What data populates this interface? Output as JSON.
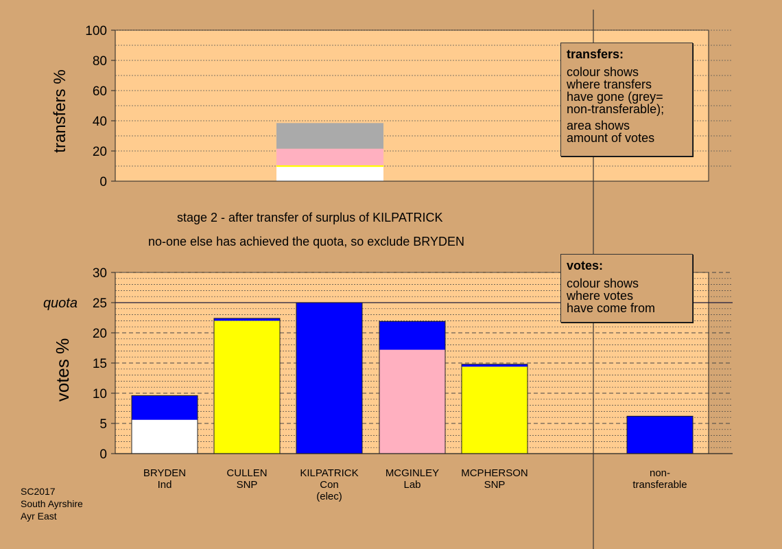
{
  "captions": {
    "line1": "stage 2 - after transfer of surplus of KILPATRICK",
    "line2": "no-one else has achieved the quota, so exclude BRYDEN"
  },
  "footer": {
    "lines": [
      "SC2017",
      "South Ayrshire",
      "Ayr East"
    ]
  },
  "legend_transfers": {
    "title": "transfers:",
    "lines_a": [
      "colour shows",
      "where transfers",
      "have gone (grey=",
      "non-transferable);"
    ],
    "lines_b": [
      "area shows",
      "amount of votes"
    ]
  },
  "legend_votes": {
    "title": "votes:",
    "lines": [
      "colour shows",
      "where votes",
      "have come from"
    ]
  },
  "colors": {
    "background": "#d4a674",
    "plot_bg": "#ffcc8f",
    "Ind": "#ffffff",
    "SNP": "#ffff00",
    "Con": "#0000ff",
    "Lab": "#ffb0c0",
    "non_transferable": "#aaaaaa"
  },
  "chart_data": [
    {
      "type": "bar",
      "name": "transfers",
      "ylabel": "transfers %",
      "ylim": [
        0,
        100
      ],
      "yticks": [
        0,
        20,
        40,
        60,
        80,
        100
      ],
      "bar": {
        "segments": [
          {
            "color": "Ind",
            "value": 9.5
          },
          {
            "color": "SNP",
            "value": 1.0
          },
          {
            "color": "Lab",
            "value": 11.0
          },
          {
            "color": "non_transferable",
            "value": 17.0
          }
        ]
      }
    },
    {
      "type": "bar",
      "name": "votes",
      "ylabel": "votes %",
      "ylim": [
        0,
        30
      ],
      "yticks": [
        0,
        5,
        10,
        15,
        20,
        25,
        30
      ],
      "quota": 25,
      "quota_label": "quota",
      "candidates": [
        {
          "label": [
            "BRYDEN",
            "Ind"
          ],
          "segments": [
            {
              "color": "Ind",
              "value": 5.6
            },
            {
              "color": "Con",
              "value": 4.0
            }
          ]
        },
        {
          "label": [
            "CULLEN",
            "SNP"
          ],
          "segments": [
            {
              "color": "SNP",
              "value": 22.0
            },
            {
              "color": "Con",
              "value": 0.4
            }
          ]
        },
        {
          "label": [
            "KILPATRICK",
            "Con",
            "(elec)"
          ],
          "segments": [
            {
              "color": "Con",
              "value": 25.0
            }
          ]
        },
        {
          "label": [
            "MCGINLEY",
            "Lab"
          ],
          "segments": [
            {
              "color": "Lab",
              "value": 17.2
            },
            {
              "color": "Con",
              "value": 4.7
            }
          ]
        },
        {
          "label": [
            "MCPHERSON",
            "SNP"
          ],
          "segments": [
            {
              "color": "SNP",
              "value": 14.4
            },
            {
              "color": "Con",
              "value": 0.4
            }
          ]
        },
        {
          "label": [
            "non-",
            "transferable"
          ],
          "segments": [
            {
              "color": "Con",
              "value": 6.2
            }
          ]
        }
      ]
    }
  ]
}
